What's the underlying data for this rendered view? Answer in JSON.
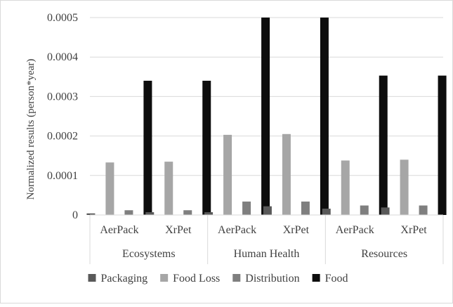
{
  "chart_data": {
    "type": "bar",
    "ylabel": "Normalized results (person*year)",
    "xlabel": "",
    "title": "",
    "ylim": [
      0,
      0.0005
    ],
    "yticks": [
      "0",
      "0.0001",
      "0.0002",
      "0.0003",
      "0.0004",
      "0.0005"
    ],
    "grid": true,
    "legend_position": "bottom",
    "groups": [
      "Ecosystems",
      "Human Health",
      "Resources"
    ],
    "categories": [
      "AerPack",
      "XrPet",
      "AerPack",
      "XrPet",
      "AerPack",
      "XrPet"
    ],
    "series": [
      {
        "name": "Packaging",
        "color": "#595959",
        "values": [
          4e-06,
          7e-06,
          7e-06,
          2.2e-05,
          1.6e-05,
          1.9e-05
        ]
      },
      {
        "name": "Food Loss",
        "color": "#a6a6a6",
        "values": [
          0.000133,
          0.000135,
          0.000203,
          0.000205,
          0.000138,
          0.00014
        ]
      },
      {
        "name": "Distribution",
        "color": "#7f7f7f",
        "values": [
          1.2e-05,
          1.2e-05,
          3.4e-05,
          3.4e-05,
          2.4e-05,
          2.4e-05
        ]
      },
      {
        "name": "Food",
        "color": "#0d0d0d",
        "values": [
          0.00034,
          0.00034,
          0.0005,
          0.0005,
          0.000353,
          0.000353
        ]
      }
    ]
  }
}
